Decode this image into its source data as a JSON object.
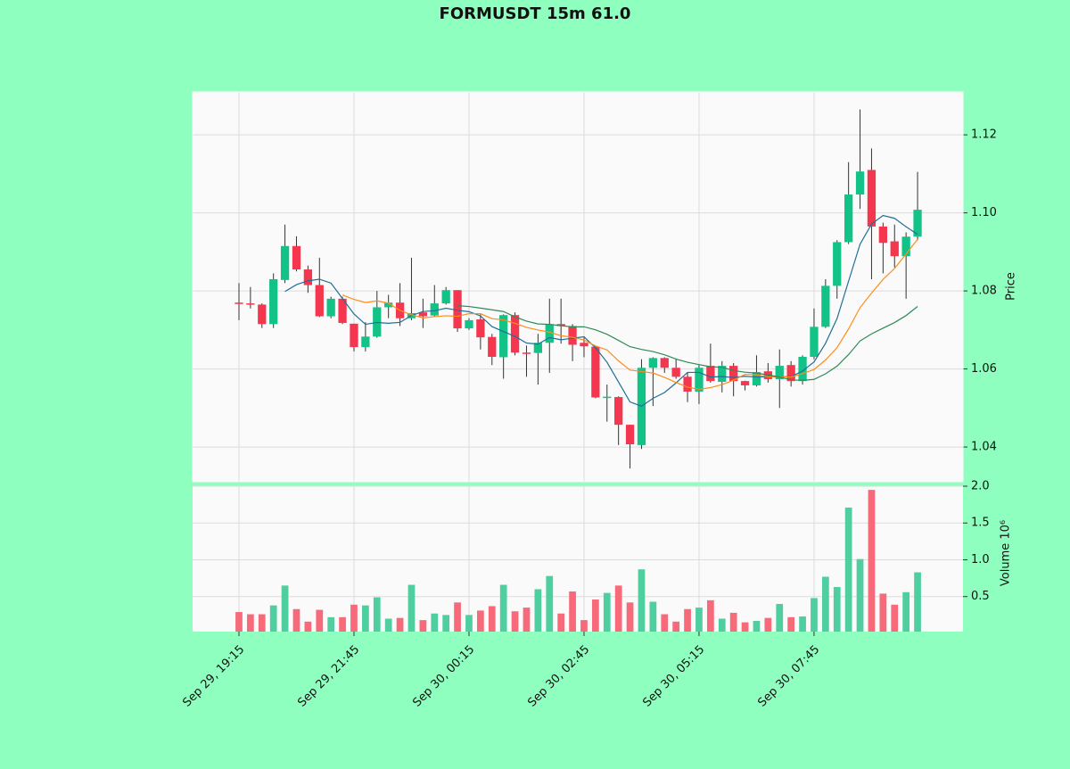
{
  "chart_data": [
    {
      "type": "candlestick",
      "title": "FORMUSDT 15m 61.0",
      "ylabel": "Price",
      "up_color": "#13c287",
      "down_color": "#f5364f",
      "x": [
        0,
        1,
        2,
        3,
        4,
        5,
        6,
        7,
        8,
        9,
        10,
        11,
        12,
        13,
        14,
        15,
        16,
        17,
        18,
        19,
        20,
        21,
        22,
        23,
        24,
        25,
        26,
        27,
        28,
        29,
        30,
        31,
        32,
        33,
        34,
        35,
        36,
        37,
        38,
        39,
        40,
        41,
        42,
        43,
        44,
        45,
        46,
        47,
        48,
        49,
        50,
        51,
        52,
        53,
        54,
        55,
        56,
        57,
        58,
        59
      ],
      "xlim": [
        -4.03,
        62.95
      ],
      "open": [
        1.077,
        1.0768,
        1.0765,
        1.0715,
        1.0828,
        1.0915,
        1.0855,
        1.0815,
        1.0735,
        1.078,
        1.0716,
        1.0656,
        1.0683,
        1.0758,
        1.077,
        1.073,
        1.0745,
        1.0737,
        1.0768,
        1.0802,
        1.0704,
        1.0727,
        1.0682,
        1.063,
        1.0738,
        1.0642,
        1.0641,
        1.0667,
        1.0715,
        1.071,
        1.0667,
        1.0657,
        1.0527,
        1.0528,
        1.0457,
        1.0405,
        1.0603,
        1.0628,
        1.0603,
        1.058,
        1.0542,
        1.0608,
        1.0567,
        1.0608,
        1.0569,
        1.0558,
        1.0594,
        1.0574,
        1.061,
        1.0569,
        1.0631,
        1.0708,
        1.0813,
        1.0925,
        1.1047,
        1.111,
        1.0965,
        1.0927,
        1.0889,
        1.0939
      ],
      "high": [
        1.082,
        1.081,
        1.0768,
        1.0845,
        1.097,
        1.094,
        1.0865,
        1.0885,
        1.0785,
        1.0785,
        1.0716,
        1.072,
        1.08,
        1.079,
        1.082,
        1.0885,
        1.078,
        1.0815,
        1.081,
        1.0802,
        1.073,
        1.074,
        1.069,
        1.074,
        1.0745,
        1.066,
        1.069,
        1.078,
        1.078,
        1.0715,
        1.068,
        1.066,
        1.056,
        1.053,
        1.0457,
        1.0625,
        1.063,
        1.063,
        1.0625,
        1.059,
        1.061,
        1.0665,
        1.062,
        1.0615,
        1.057,
        1.0635,
        1.0615,
        1.065,
        1.062,
        1.0635,
        1.0755,
        1.083,
        1.093,
        1.113,
        1.1265,
        1.1165,
        1.0975,
        1.097,
        1.095,
        1.1105
      ],
      "low": [
        1.0725,
        1.0755,
        1.0705,
        1.0705,
        1.082,
        1.085,
        1.0795,
        1.0733,
        1.073,
        1.0715,
        1.0645,
        1.0645,
        1.068,
        1.073,
        1.071,
        1.0725,
        1.0705,
        1.0735,
        1.0765,
        1.0695,
        1.07,
        1.065,
        1.061,
        1.0575,
        1.0635,
        1.058,
        1.056,
        1.059,
        1.0665,
        1.062,
        1.063,
        1.0525,
        1.0465,
        1.0405,
        1.0345,
        1.0395,
        1.0505,
        1.059,
        1.0575,
        1.0515,
        1.051,
        1.0565,
        1.054,
        1.053,
        1.0545,
        1.0555,
        1.0565,
        1.05,
        1.0555,
        1.056,
        1.0625,
        1.0705,
        1.078,
        1.092,
        1.101,
        1.083,
        1.0845,
        1.086,
        1.078,
        1.093
      ],
      "close": [
        1.0768,
        1.0765,
        1.0715,
        1.083,
        1.0915,
        1.0855,
        1.0815,
        1.0735,
        1.078,
        1.0718,
        1.0656,
        1.0683,
        1.0758,
        1.077,
        1.073,
        1.0743,
        1.0735,
        1.0768,
        1.0802,
        1.0704,
        1.0725,
        1.0681,
        1.0631,
        1.0738,
        1.0642,
        1.064,
        1.0667,
        1.0715,
        1.071,
        1.0662,
        1.0658,
        1.0527,
        1.0529,
        1.0457,
        1.0407,
        1.0603,
        1.0628,
        1.0603,
        1.058,
        1.0542,
        1.0603,
        1.0569,
        1.0608,
        1.0569,
        1.0558,
        1.0592,
        1.0574,
        1.0608,
        1.0569,
        1.0631,
        1.0708,
        1.0813,
        1.0925,
        1.1047,
        1.1106,
        1.0965,
        1.0923,
        1.0889,
        1.0939,
        1.1008
      ],
      "mav": [
        {
          "color": "#1f6f96",
          "values": [
            null,
            null,
            null,
            null,
            1.07986,
            1.0816,
            1.0826,
            1.083,
            1.082,
            1.07806,
            1.07408,
            1.07144,
            1.0719,
            1.0717,
            1.07194,
            1.07368,
            1.07472,
            1.07492,
            1.07556,
            1.07504,
            1.07468,
            1.0736,
            1.07086,
            1.06958,
            1.06834,
            1.06664,
            1.06636,
            1.06804,
            1.06748,
            1.06788,
            1.06824,
            1.06544,
            1.06172,
            1.05666,
            1.05156,
            1.05046,
            1.05248,
            1.05396,
            1.05642,
            1.05912,
            1.05912,
            1.05794,
            1.05804,
            1.05782,
            1.05814,
            1.05792,
            1.05802,
            1.05802,
            1.05802,
            1.05948,
            1.0618,
            1.06658,
            1.07292,
            1.08248,
            1.09198,
            1.09712,
            1.09932,
            1.0986,
            1.09644,
            1.09448
          ]
        },
        {
          "color": "#ff8c1a",
          "values": [
            null,
            null,
            null,
            null,
            null,
            null,
            null,
            null,
            null,
            1.07896,
            1.07784,
            1.07702,
            1.07745,
            1.07685,
            1.075,
            1.07388,
            1.07308,
            1.07341,
            1.07363,
            1.07349,
            1.07418,
            1.07416,
            1.07289,
            1.07257,
            1.07169,
            1.07066,
            1.06998,
            1.06945,
            1.06853,
            1.06811,
            1.06744,
            1.0659,
            1.06488,
            1.06207,
            1.05972,
            1.05935,
            1.05896,
            1.05784,
            1.05654,
            1.05534,
            1.05479,
            1.05521,
            1.056,
            1.05712,
            1.05863,
            1.05852,
            1.05798,
            1.05803,
            1.05792,
            1.05881,
            1.05986,
            1.0623,
            1.06547,
            1.07025,
            1.07573,
            1.07946,
            1.08295,
            1.08576,
            1.08946,
            1.09323
          ]
        },
        {
          "color": "#2e8b57",
          "values": [
            null,
            null,
            null,
            null,
            null,
            null,
            null,
            null,
            null,
            null,
            null,
            null,
            null,
            null,
            null,
            null,
            null,
            null,
            null,
            1.076225,
            1.07601,
            1.07559,
            1.07517,
            1.07471,
            1.073345,
            1.07227,
            1.07153,
            1.07143,
            1.07108,
            1.0708,
            1.07081,
            1.07003,
            1.068885,
            1.06732,
            1.065705,
            1.065005,
            1.06447,
            1.063645,
            1.062535,
            1.061725,
            1.061115,
            1.060555,
            1.06044,
            1.059595,
            1.059175,
            1.058935,
            1.05847,
            1.057935,
            1.05723,
            1.057075,
            1.057325,
            1.058755,
            1.060735,
            1.063685,
            1.06718,
            1.06899,
            1.070465,
            1.071895,
            1.07369,
            1.07602
          ]
        }
      ],
      "ylim": [
        1.0311,
        1.131
      ],
      "yticks": [
        1.04,
        1.06,
        1.08,
        {
          "value": 1.1,
          "label": "1.10"
        },
        1.12
      ],
      "grid": true
    },
    {
      "type": "volume",
      "ylabel": "Volume  10⁶",
      "up_color": "#4fcf9f",
      "down_color": "#f66a7a",
      "values": [
        0.29,
        0.26,
        0.26,
        0.38,
        0.65,
        0.33,
        0.16,
        0.32,
        0.22,
        0.22,
        0.39,
        0.38,
        0.49,
        0.2,
        0.21,
        0.66,
        0.18,
        0.27,
        0.25,
        0.42,
        0.25,
        0.31,
        0.37,
        0.66,
        0.3,
        0.35,
        0.6,
        0.78,
        0.27,
        0.57,
        0.18,
        0.46,
        0.55,
        0.65,
        0.42,
        0.87,
        0.43,
        0.26,
        0.16,
        0.33,
        0.35,
        0.45,
        0.2,
        0.28,
        0.15,
        0.17,
        0.21,
        0.4,
        0.22,
        0.23,
        0.48,
        0.77,
        0.63,
        1.71,
        1.01,
        1.95,
        0.54,
        0.39,
        0.56,
        0.83
      ],
      "ylim": [
        0.024,
        2.0
      ],
      "yticks": [
        0.5,
        {
          "value": 1,
          "label": "1.0"
        },
        1.5,
        {
          "value": 2,
          "label": "2.0"
        }
      ],
      "xticks": [
        {
          "value": 0,
          "label": "Sep 29, 19:15"
        },
        {
          "value": 10,
          "label": "Sep 29, 21:45"
        },
        {
          "value": 20,
          "label": "Sep 30, 00:15"
        },
        {
          "value": 30,
          "label": "Sep 30, 02:45"
        },
        {
          "value": 40,
          "label": "Sep 30, 05:15"
        },
        {
          "value": 50,
          "label": "Sep 30, 07:45"
        }
      ],
      "grid": true
    }
  ]
}
